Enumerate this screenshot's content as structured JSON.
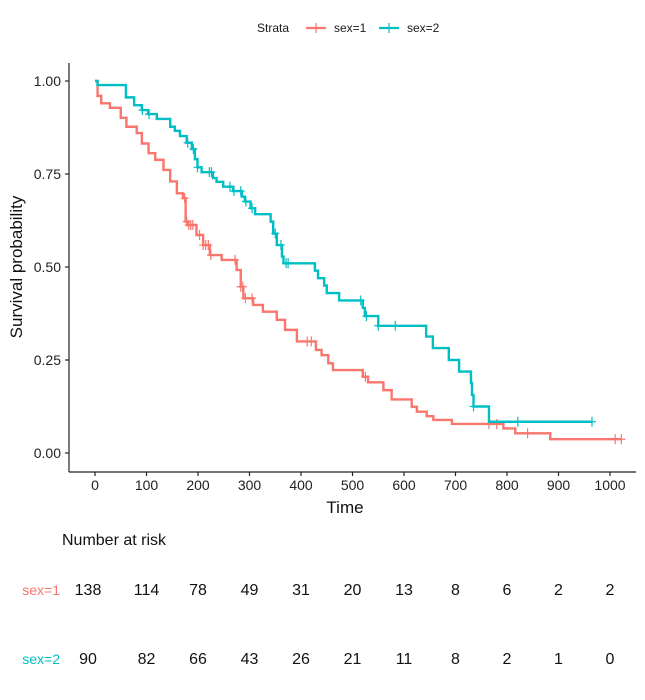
{
  "chart_data": {
    "type": "line",
    "subtype": "kaplan-meier step",
    "xlabel": "Time",
    "ylabel": "Survival probability",
    "xlim": [
      0,
      1025
    ],
    "ylim": [
      0,
      1
    ],
    "xticks": [
      "0",
      "100",
      "200",
      "300",
      "400",
      "500",
      "600",
      "700",
      "800",
      "900",
      "1000"
    ],
    "yticks": [
      "0.00",
      "0.25",
      "0.50",
      "0.75",
      "1.00"
    ],
    "grid": false,
    "legend": {
      "title": "Strata",
      "position": "top"
    },
    "series": [
      {
        "name": "sex=1",
        "color": "#F8766D",
        "end_time": 1022,
        "steps": [
          [
            0,
            1
          ],
          [
            5,
            0.96
          ],
          [
            12,
            0.94
          ],
          [
            29,
            0.928
          ],
          [
            50,
            0.901
          ],
          [
            61,
            0.877
          ],
          [
            81,
            0.86
          ],
          [
            91,
            0.832
          ],
          [
            104,
            0.806
          ],
          [
            117,
            0.788
          ],
          [
            133,
            0.761
          ],
          [
            146,
            0.73
          ],
          [
            159,
            0.698
          ],
          [
            171,
            0.685
          ],
          [
            176,
            0.622
          ],
          [
            180,
            0.613
          ],
          [
            197,
            0.586
          ],
          [
            210,
            0.559
          ],
          [
            223,
            0.532
          ],
          [
            246,
            0.519
          ],
          [
            275,
            0.492
          ],
          [
            283,
            0.447
          ],
          [
            288,
            0.416
          ],
          [
            307,
            0.398
          ],
          [
            326,
            0.38
          ],
          [
            353,
            0.358
          ],
          [
            369,
            0.331
          ],
          [
            392,
            0.3
          ],
          [
            429,
            0.277
          ],
          [
            440,
            0.263
          ],
          [
            453,
            0.241
          ],
          [
            462,
            0.223
          ],
          [
            520,
            0.205
          ],
          [
            530,
            0.19
          ],
          [
            560,
            0.169
          ],
          [
            576,
            0.144
          ],
          [
            615,
            0.124
          ],
          [
            625,
            0.111
          ],
          [
            644,
            0.099
          ],
          [
            657,
            0.089
          ],
          [
            693,
            0.078
          ],
          [
            793,
            0.066
          ],
          [
            816,
            0.053
          ],
          [
            884,
            0.037
          ]
        ],
        "censored": [
          174,
          178,
          182,
          186,
          190,
          203,
          210,
          215,
          220,
          225,
          272,
          283,
          287,
          292,
          305,
          412,
          420,
          525,
          765,
          780,
          840,
          1010,
          1022
        ]
      },
      {
        "name": "sex=2",
        "color": "#00BFC4",
        "end_time": 965,
        "steps": [
          [
            0,
            1
          ],
          [
            5,
            0.989
          ],
          [
            60,
            0.956
          ],
          [
            76,
            0.935
          ],
          [
            91,
            0.922
          ],
          [
            103,
            0.911
          ],
          [
            120,
            0.898
          ],
          [
            146,
            0.877
          ],
          [
            155,
            0.866
          ],
          [
            165,
            0.852
          ],
          [
            178,
            0.834
          ],
          [
            188,
            0.817
          ],
          [
            194,
            0.79
          ],
          [
            199,
            0.768
          ],
          [
            207,
            0.755
          ],
          [
            229,
            0.739
          ],
          [
            236,
            0.729
          ],
          [
            249,
            0.716
          ],
          [
            268,
            0.704
          ],
          [
            285,
            0.689
          ],
          [
            291,
            0.676
          ],
          [
            302,
            0.658
          ],
          [
            311,
            0.642
          ],
          [
            341,
            0.622
          ],
          [
            346,
            0.59
          ],
          [
            353,
            0.559
          ],
          [
            363,
            0.528
          ],
          [
            366,
            0.51
          ],
          [
            427,
            0.49
          ],
          [
            433,
            0.47
          ],
          [
            445,
            0.45
          ],
          [
            450,
            0.43
          ],
          [
            474,
            0.41
          ],
          [
            520,
            0.39
          ],
          [
            524,
            0.368
          ],
          [
            550,
            0.342
          ],
          [
            643,
            0.313
          ],
          [
            656,
            0.282
          ],
          [
            687,
            0.25
          ],
          [
            707,
            0.219
          ],
          [
            730,
            0.188
          ],
          [
            732,
            0.156
          ],
          [
            735,
            0.125
          ],
          [
            765,
            0.084
          ]
        ],
        "censored": [
          92,
          105,
          180,
          191,
          199,
          222,
          226,
          262,
          270,
          283,
          293,
          305,
          350,
          361,
          371,
          375,
          516,
          527,
          550,
          583,
          735,
          821,
          965
        ]
      }
    ]
  },
  "risk_table": {
    "title": "Number at risk",
    "times": [
      0,
      100,
      200,
      300,
      400,
      500,
      600,
      700,
      800,
      900,
      1000
    ],
    "rows": [
      {
        "label": "sex=1",
        "color": "#F8766D",
        "values": [
          "138",
          "114",
          "78",
          "49",
          "31",
          "20",
          "13",
          "8",
          "6",
          "2",
          "2"
        ]
      },
      {
        "label": "sex=2",
        "color": "#00BFC4",
        "values": [
          "90",
          "82",
          "66",
          "43",
          "26",
          "21",
          "11",
          "8",
          "2",
          "1",
          "0"
        ]
      }
    ]
  }
}
